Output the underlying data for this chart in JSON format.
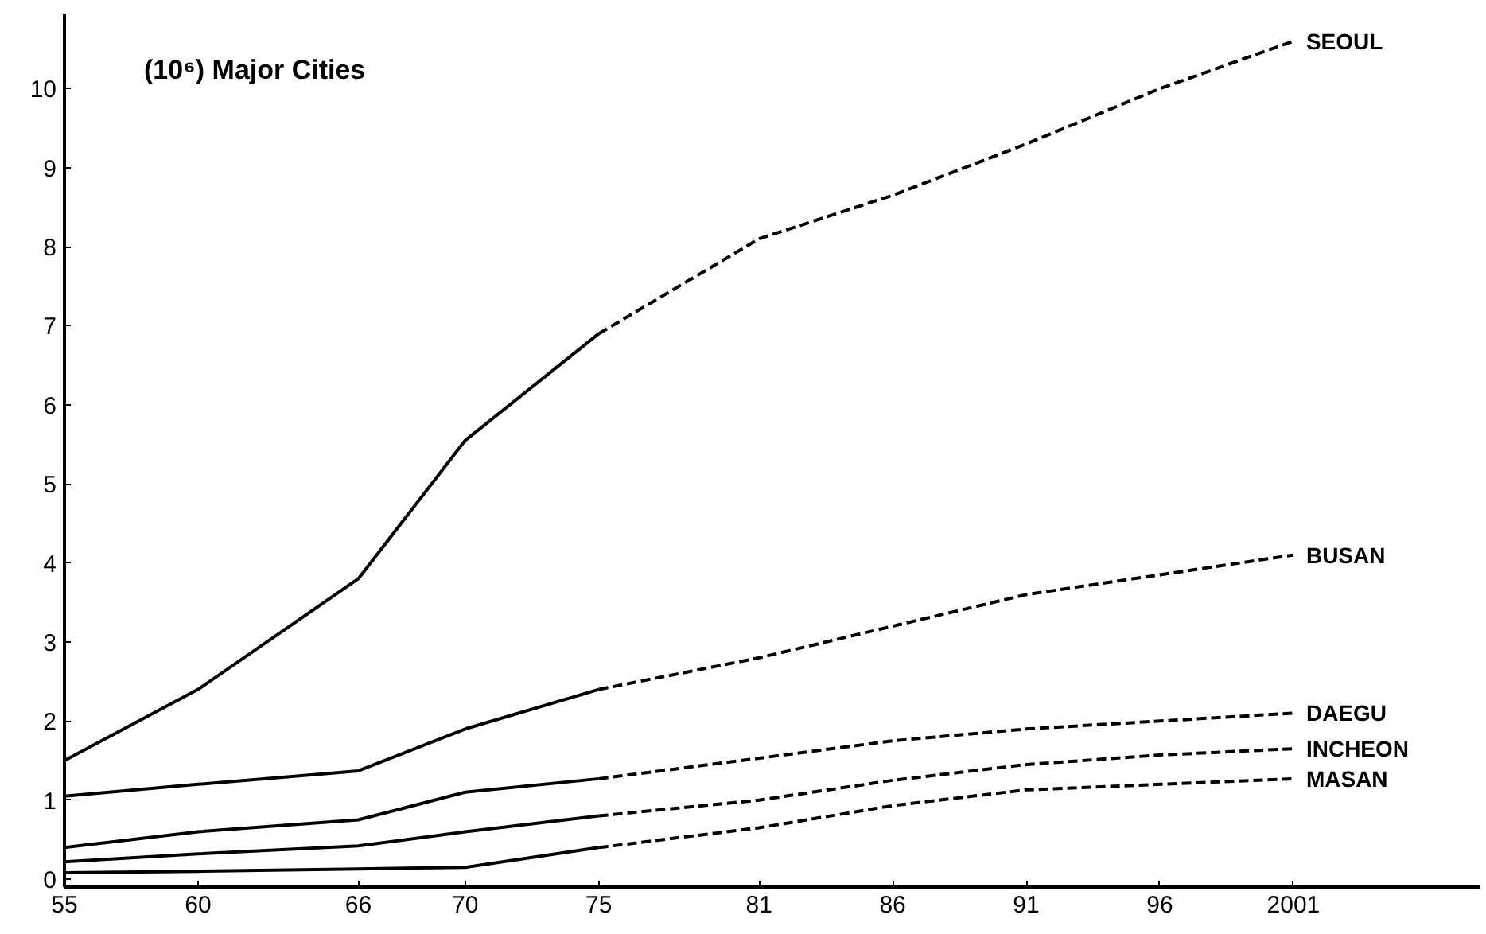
{
  "chart_data": {
    "type": "line",
    "title": "(10⁶) Major Cities",
    "xlim": [
      1955,
      2008
    ],
    "ylim": [
      -0.1,
      10.95
    ],
    "xticks": [
      {
        "value": 1955,
        "label": "55"
      },
      {
        "value": 1960,
        "label": "60"
      },
      {
        "value": 1966,
        "label": "66"
      },
      {
        "value": 1970,
        "label": "70"
      },
      {
        "value": 1975,
        "label": "75"
      },
      {
        "value": 1981,
        "label": "81"
      },
      {
        "value": 1986,
        "label": "86"
      },
      {
        "value": 1991,
        "label": "91"
      },
      {
        "value": 1996,
        "label": "96"
      },
      {
        "value": 2001,
        "label": "2001"
      }
    ],
    "yticks": [
      0,
      1,
      2,
      3,
      4,
      5,
      6,
      7,
      8,
      9,
      10
    ],
    "grid": false,
    "marker": "none",
    "series": [
      {
        "color": "#000000",
        "line_style": "solid",
        "x": [
          1955,
          1960,
          1966,
          1970,
          1975
        ],
        "values": [
          1.5,
          2.4,
          3.8,
          5.55,
          6.9
        ]
      },
      {
        "name": "SEOUL",
        "color": "#000000",
        "line_style": "dashed",
        "x": [
          1975,
          1981,
          1986,
          1991,
          1996,
          2001
        ],
        "values": [
          6.9,
          8.1,
          8.65,
          9.3,
          10.0,
          10.6
        ]
      },
      {
        "color": "#000000",
        "line_style": "solid",
        "x": [
          1955,
          1960,
          1966,
          1970,
          1975
        ],
        "values": [
          1.05,
          1.2,
          1.37,
          1.9,
          2.4
        ]
      },
      {
        "name": "BUSAN",
        "color": "#000000",
        "line_style": "dashed",
        "x": [
          1975,
          1981,
          1986,
          1991,
          1996,
          2001
        ],
        "values": [
          2.4,
          2.8,
          3.2,
          3.6,
          3.85,
          4.1
        ]
      },
      {
        "color": "#000000",
        "line_style": "solid",
        "x": [
          1955,
          1960,
          1966,
          1970,
          1975
        ],
        "values": [
          0.4,
          0.6,
          0.75,
          1.1,
          1.27
        ]
      },
      {
        "name": "DAEGU",
        "color": "#000000",
        "line_style": "dashed",
        "x": [
          1975,
          1981,
          1986,
          1991,
          1996,
          2001
        ],
        "values": [
          1.27,
          1.53,
          1.75,
          1.9,
          2.0,
          2.1
        ]
      },
      {
        "color": "#000000",
        "line_style": "solid",
        "x": [
          1955,
          1960,
          1966,
          1970,
          1975
        ],
        "values": [
          0.22,
          0.32,
          0.42,
          0.6,
          0.8
        ]
      },
      {
        "name": "INCHEON",
        "color": "#000000",
        "line_style": "dashed",
        "x": [
          1975,
          1981,
          1986,
          1991,
          1996,
          2001
        ],
        "values": [
          0.8,
          1.0,
          1.25,
          1.45,
          1.57,
          1.65
        ]
      },
      {
        "color": "#000000",
        "line_style": "solid",
        "x": [
          1955,
          1960,
          1966,
          1970,
          1975
        ],
        "values": [
          0.08,
          0.1,
          0.13,
          0.15,
          0.4
        ]
      },
      {
        "name": "MASAN",
        "color": "#000000",
        "line_style": "dashed",
        "x": [
          1975,
          1981,
          1986,
          1991,
          1996,
          2001
        ],
        "values": [
          0.4,
          0.65,
          0.93,
          1.13,
          1.2,
          1.27
        ]
      }
    ]
  }
}
